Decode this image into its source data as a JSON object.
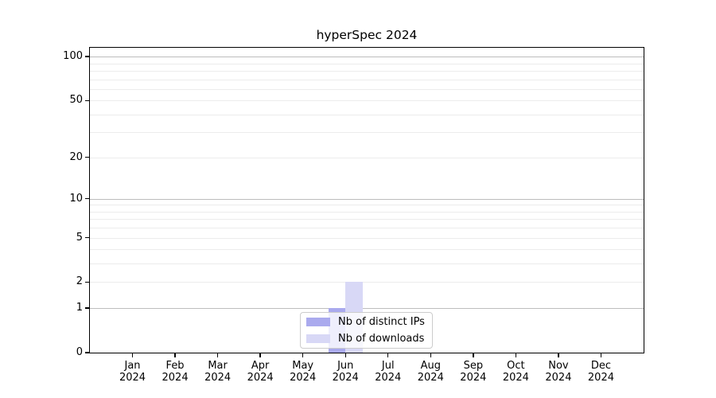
{
  "chart_data": {
    "type": "bar",
    "title": "hyperSpec 2024",
    "categories": [
      "Jan",
      "Feb",
      "Mar",
      "Apr",
      "May",
      "Jun",
      "Jul",
      "Aug",
      "Sep",
      "Oct",
      "Nov",
      "Dec"
    ],
    "category_year": "2024",
    "series": [
      {
        "name": "Nb of distinct IPs",
        "color": "#aaaaee",
        "values": [
          0,
          0,
          0,
          0,
          0,
          1,
          0,
          0,
          0,
          0,
          0,
          0
        ]
      },
      {
        "name": "Nb of downloads",
        "color": "#d8d8f6",
        "values": [
          0,
          0,
          0,
          0,
          0,
          2,
          0,
          0,
          0,
          0,
          0,
          0
        ]
      }
    ],
    "xlabel": "",
    "ylabel": "",
    "yscale": "log1p",
    "ylim": [
      0,
      115
    ],
    "yticks": [
      0,
      1,
      2,
      5,
      10,
      20,
      50,
      100
    ],
    "grid": {
      "on": true,
      "major_values": [
        1,
        10,
        100
      ],
      "minor_values": [
        2,
        3,
        4,
        5,
        6,
        7,
        8,
        9,
        20,
        30,
        40,
        50,
        60,
        70,
        80,
        90
      ],
      "major_color": "#bdbdbd",
      "minor_color": "#ececec"
    },
    "legend": {
      "position": "lower center",
      "entries": [
        "Nb of distinct IPs",
        "Nb of downloads"
      ]
    }
  }
}
